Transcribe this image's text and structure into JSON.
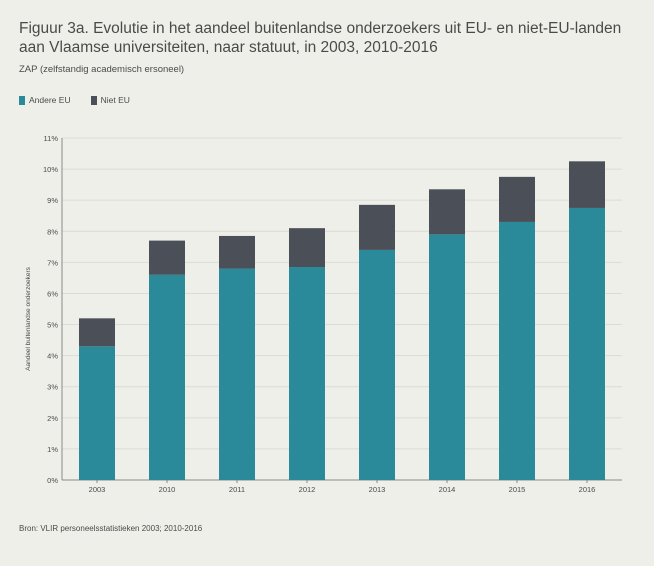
{
  "title": "Figuur 3a. Evolutie in het aandeel buitenlandse onderzoekers uit EU- en niet-EU-landen aan Vlaamse universiteiten, naar statuut, in 2003, 2010-2016",
  "subtitle": "ZAP (zelfstandig academisch ersoneel)",
  "source": "Bron: VLIR personeelsstatistieken 2003; 2010-2016",
  "colors": {
    "andere_eu": "#2b8a99",
    "niet_eu": "#4b4f58",
    "grid": "#dcdcd5",
    "background": "#efefea"
  },
  "legend": [
    {
      "label": "Andere EU",
      "color": "#2b8a99"
    },
    {
      "label": "Niet EU",
      "color": "#4b4f58"
    }
  ],
  "chart_data": {
    "type": "bar",
    "stacked": true,
    "title": "Figuur 3a. Evolutie in het aandeel buitenlandse onderzoekers uit EU- en niet-EU-landen aan Vlaamse universiteiten, naar statuut, in 2003, 2010-2016",
    "xlabel": "",
    "ylabel": "Aandeel buitenlandse onderzoekers",
    "categories": [
      "2003",
      "2010",
      "2011",
      "2012",
      "2013",
      "2014",
      "2015",
      "2016"
    ],
    "series": [
      {
        "name": "Andere EU",
        "color": "#2b8a99",
        "values": [
          4.3,
          6.6,
          6.8,
          6.85,
          7.4,
          7.9,
          8.3,
          8.75
        ]
      },
      {
        "name": "Niet EU",
        "color": "#4b4f58",
        "values": [
          0.9,
          1.1,
          1.05,
          1.25,
          1.45,
          1.45,
          1.45,
          1.5
        ]
      }
    ],
    "ylim": [
      0,
      11
    ],
    "yticks": [
      "0%",
      "1%",
      "2%",
      "3%",
      "4%",
      "5%",
      "6%",
      "7%",
      "8%",
      "9%",
      "10%",
      "11%"
    ],
    "grid": true,
    "legend_position": "top-left"
  }
}
